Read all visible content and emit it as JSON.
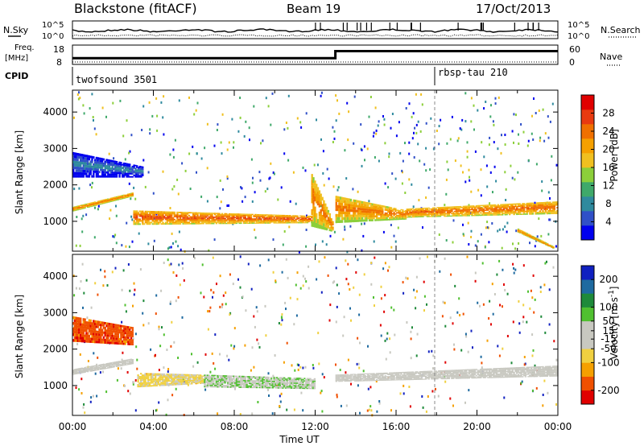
{
  "header": {
    "station": "Blackstone (fitACF)",
    "beam": "Beam 19",
    "date": "17/Oct/2013"
  },
  "top_panels": {
    "nsky_label": "N.Sky",
    "nsearch_label": "N.Search",
    "noise_ticks_left": [
      "10^5",
      "10^0"
    ],
    "noise_ticks_right": [
      "10^5",
      "10^0"
    ],
    "freq_label_1": "Freq.",
    "freq_label_2": "[MHz]",
    "freq_ticks": [
      "18",
      "8"
    ],
    "nave_label": "Nave",
    "nave_ticks": [
      "60",
      "0"
    ],
    "cpid_label": "CPID",
    "cpid_1": "twofsound 3501",
    "cpid_2": "rbsp-tau 210",
    "freq_step": {
      "time_hours": [
        0,
        13,
        13,
        24
      ],
      "mhz": [
        10.5,
        10.5,
        15.6,
        15.6
      ]
    }
  },
  "colors": {
    "power_scale": [
      "#0000ee",
      "#3050c8",
      "#2f8a9e",
      "#3fa96a",
      "#8ccf3a",
      "#f0c020",
      "#f5a000",
      "#f07000",
      "#e83a10",
      "#e00000"
    ],
    "velocity_scale": [
      "#e00000",
      "#f05000",
      "#f5a000",
      "#f0d040",
      "#c8c8c0",
      "#c8c8c0",
      "#50c030",
      "#1e8a3a",
      "#1e6aa0",
      "#1020c0"
    ]
  },
  "chart_data": [
    {
      "type": "heatmap",
      "name": "power",
      "xlabel": "Time UT",
      "ylabel": "Slant Range [km]",
      "x_ticks": [
        "00:00",
        "04:00",
        "08:00",
        "12:00",
        "16:00",
        "20:00",
        "00:00"
      ],
      "xlim_hours": [
        0,
        24
      ],
      "y_ticks": [
        1000,
        2000,
        3000,
        4000
      ],
      "ylim": [
        180,
        4600
      ],
      "colorbar": {
        "label": "Power [dB]",
        "ticks": [
          4,
          8,
          12,
          16,
          20,
          24,
          28
        ],
        "range": [
          0,
          32
        ]
      },
      "features": [
        {
          "t": [
            0.0,
            3.0
          ],
          "r_start": [
            1280,
            1700
          ],
          "r_end": [
            1400,
            1800
          ],
          "power": 26
        },
        {
          "t": [
            3.0,
            12.0
          ],
          "r_start": [
            900,
            950
          ],
          "r_end": [
            1300,
            1150
          ],
          "power": 28
        },
        {
          "t": [
            11.8,
            12.9
          ],
          "r_start": [
            850,
            700
          ],
          "r_end": [
            2300,
            950
          ],
          "power": 26
        },
        {
          "t": [
            13.0,
            16.5
          ],
          "r_start": [
            950,
            1050
          ],
          "r_end": [
            1700,
            1300
          ],
          "power": 26
        },
        {
          "t": [
            16.5,
            24.0
          ],
          "r_start": [
            1100,
            1200
          ],
          "r_end": [
            1350,
            1550
          ],
          "power": 27
        },
        {
          "t": [
            0.0,
            3.5
          ],
          "r_start": [
            2200,
            2200
          ],
          "r_end": [
            2900,
            2500
          ],
          "power": 10
        },
        {
          "t": [
            22.0,
            23.8
          ],
          "r_start": [
            700,
            250
          ],
          "r_end": [
            800,
            300
          ],
          "power": 26
        }
      ]
    },
    {
      "type": "heatmap",
      "name": "velocity",
      "xlabel": "Time UT",
      "ylabel": "Slant Range [km]",
      "x_ticks": [
        "00:00",
        "04:00",
        "08:00",
        "12:00",
        "16:00",
        "20:00",
        "00:00"
      ],
      "xlim_hours": [
        0,
        24
      ],
      "y_ticks": [
        1000,
        2000,
        3000,
        4000
      ],
      "ylim": [
        180,
        4600
      ],
      "colorbar": {
        "label": "Velocity [m s^-1]",
        "ticks": [
          -200,
          -100,
          -50,
          -15,
          15,
          50,
          100,
          200
        ],
        "range": [
          -250,
          250
        ]
      },
      "features": [
        {
          "t": [
            0.0,
            3.0
          ],
          "r_start": [
            1300,
            1600
          ],
          "r_end": [
            1450,
            1750
          ],
          "velocity": 0
        },
        {
          "t": [
            3.2,
            6.5
          ],
          "r_start": [
            950,
            1050
          ],
          "r_end": [
            1350,
            1300
          ],
          "velocity": -60
        },
        {
          "t": [
            6.5,
            12.0
          ],
          "r_start": [
            950,
            900
          ],
          "r_end": [
            1300,
            1200
          ],
          "velocity": 40
        },
        {
          "t": [
            13.0,
            24.0
          ],
          "r_start": [
            1100,
            1250
          ],
          "r_end": [
            1300,
            1550
          ],
          "velocity": 0
        },
        {
          "t": [
            0.0,
            3.0
          ],
          "r_start": [
            2200,
            2100
          ],
          "r_end": [
            2900,
            2600
          ],
          "velocity": -180
        }
      ]
    }
  ]
}
